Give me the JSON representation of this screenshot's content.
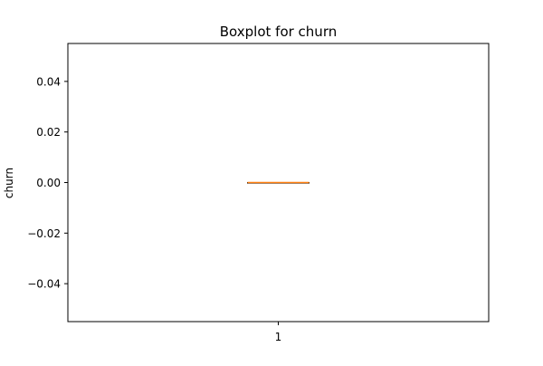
{
  "chart_data": {
    "type": "boxplot",
    "title": "Boxplot for churn",
    "xlabel": "",
    "ylabel": "churn",
    "categories": [
      "1"
    ],
    "ylim": [
      -0.055,
      0.055
    ],
    "yticks": [
      -0.04,
      -0.02,
      0.0,
      0.02,
      0.04
    ],
    "ytick_labels": [
      "−0.04",
      "−0.02",
      "0.00",
      "0.02",
      "0.04"
    ],
    "boxes": [
      {
        "category": "1",
        "min": 0.0,
        "q1": 0.0,
        "median": 0.0,
        "q3": 0.0,
        "max": 0.0
      }
    ],
    "grid": false,
    "colors": {
      "box": "#000000",
      "median": "#ff7f0e",
      "axes": "#000000"
    }
  }
}
